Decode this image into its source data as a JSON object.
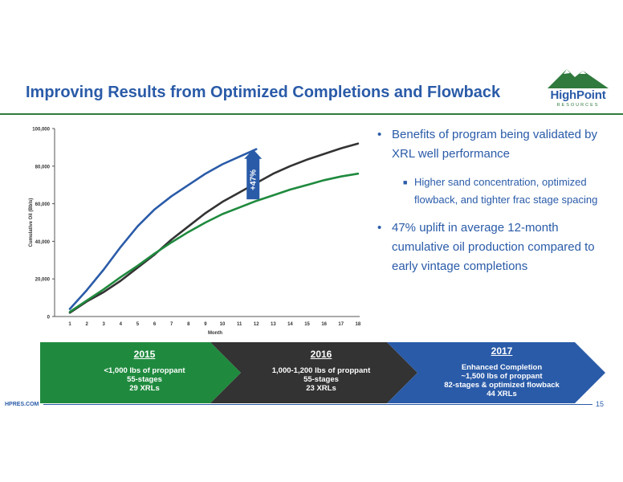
{
  "slide": {
    "title": "Improving Results from Optimized Completions and Flowback",
    "logo_name": "HighPoint",
    "logo_sub": "RESOURCES",
    "footer_site": "HPRES.COM",
    "page_number": "15"
  },
  "bullets": [
    {
      "level": 1,
      "text": "Benefits of program being validated by XRL well performance"
    },
    {
      "level": 2,
      "text": "Higher sand concentration, optimized flowback, and tighter frac stage spacing"
    },
    {
      "level": 1,
      "text": "47% uplift in average 12-month cumulative oil production compared to early vintage completions"
    }
  ],
  "banner": [
    {
      "year": "2015",
      "lines": [
        "<1,000 lbs of proppant",
        "55-stages",
        "29 XRLs"
      ],
      "color": "#1f8a3e"
    },
    {
      "year": "2016",
      "lines": [
        "1,000-1,200 lbs of proppant",
        "55-stages",
        "23 XRLs"
      ],
      "color": "#333333"
    },
    {
      "year": "2017",
      "lines": [
        "Enhanced Completion",
        "~1,500 lbs of proppant",
        "82-stages & optimized flowback",
        "44 XRLs"
      ],
      "color": "#2a5ba8"
    }
  ],
  "chart_data": {
    "type": "line",
    "xlabel": "Month",
    "ylabel": "Cumulative Oil (Bbls)",
    "xlim": [
      1,
      18
    ],
    "ylim": [
      0,
      100000
    ],
    "x_ticks": [
      "1",
      "2",
      "3",
      "4",
      "5",
      "6",
      "7",
      "8",
      "9",
      "10",
      "11",
      "12",
      "13",
      "14",
      "15",
      "16",
      "17",
      "18"
    ],
    "y_ticks": [
      "0",
      "20,000",
      "40,000",
      "60,000",
      "80,000",
      "100,000"
    ],
    "y_tick_values": [
      0,
      20000,
      40000,
      60000,
      80000,
      100000
    ],
    "grid": false,
    "annotation": "+47%",
    "annotation_color": "#2a5ba8",
    "series": [
      {
        "color": "#2a5ba8",
        "x": [
          1,
          2,
          3,
          4,
          5,
          6,
          7,
          8,
          9,
          10,
          11,
          12
        ],
        "values": [
          4000,
          14000,
          25000,
          37000,
          48000,
          57000,
          64000,
          70000,
          76000,
          81000,
          85000,
          89000
        ]
      },
      {
        "color": "#333333",
        "x": [
          1,
          2,
          3,
          4,
          5,
          6,
          7,
          8,
          9,
          10,
          11,
          12,
          13,
          14,
          15,
          16,
          17,
          18
        ],
        "values": [
          2000,
          8000,
          13000,
          19000,
          26000,
          33000,
          41000,
          48000,
          55000,
          61000,
          66000,
          71000,
          76000,
          80000,
          83500,
          86500,
          89500,
          92000
        ]
      },
      {
        "color": "#1f8a3e",
        "x": [
          1,
          2,
          3,
          4,
          5,
          6,
          7,
          8,
          9,
          10,
          11,
          12,
          13,
          14,
          15,
          16,
          17,
          18
        ],
        "values": [
          2500,
          8500,
          14500,
          21000,
          27000,
          33500,
          39500,
          45000,
          50000,
          54500,
          58000,
          61500,
          64500,
          67500,
          70000,
          72500,
          74500,
          76000
        ]
      }
    ]
  }
}
